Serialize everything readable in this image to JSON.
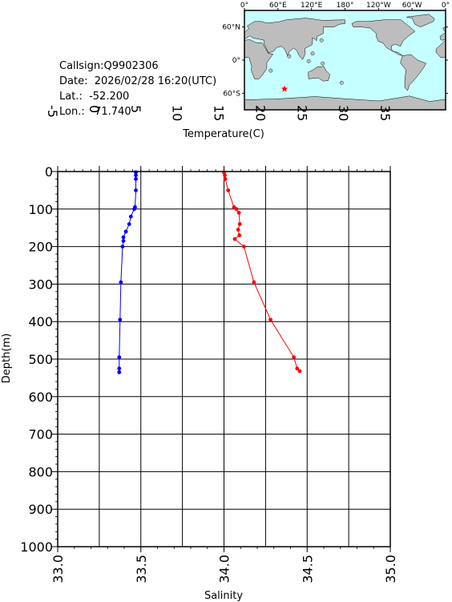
{
  "station": {
    "callsign_line": "Callsign:Q9902306",
    "date_line": "Date:  2026/02/28 16:20(UTC)",
    "lat_line": "Lat.:  -52.200",
    "lon_line": "Lon.:   71.740"
  },
  "map": {
    "top_labels": [
      "0°",
      "60°E",
      "120°E",
      "180°",
      "120°W",
      "60°W",
      "0°"
    ],
    "right_labels": [
      "60°N",
      "0°",
      "60°S"
    ],
    "ocean_color": "#c6ffff",
    "land_color": "#bdbdbd",
    "marker_color": "#ff0000",
    "marker": {
      "lon": 71.74,
      "lat": -52.2
    }
  },
  "chart_data": {
    "type": "line",
    "title": "",
    "top_axis_label": "Temperature(C)",
    "bottom_axis_label": "Salinity",
    "left_axis_label": "Depth(m)",
    "temperature_range": [
      -5,
      35
    ],
    "temperature_ticks": [
      "-5",
      "0",
      "5",
      "10",
      "15",
      "20",
      "25",
      "30",
      "35"
    ],
    "salinity_range": [
      33.0,
      35.0
    ],
    "salinity_ticks": [
      "33.0",
      "33.5",
      "34.0",
      "34.5",
      "35.0"
    ],
    "depth_range": [
      0,
      1000
    ],
    "depth_ticks": [
      "0",
      "100",
      "200",
      "300",
      "400",
      "500",
      "600",
      "700",
      "800",
      "900",
      "1000"
    ],
    "grid": true,
    "series": [
      {
        "variable": "temperature",
        "color": "#ff0000",
        "points": [
          {
            "depth": 2,
            "value": 15.0
          },
          {
            "depth": 10,
            "value": 15.1
          },
          {
            "depth": 20,
            "value": 15.15
          },
          {
            "depth": 50,
            "value": 15.5
          },
          {
            "depth": 95,
            "value": 16.2
          },
          {
            "depth": 100,
            "value": 16.5
          },
          {
            "depth": 110,
            "value": 16.8
          },
          {
            "depth": 140,
            "value": 16.9
          },
          {
            "depth": 155,
            "value": 16.7
          },
          {
            "depth": 170,
            "value": 16.85
          },
          {
            "depth": 180,
            "value": 16.3
          },
          {
            "depth": 200,
            "value": 17.4
          },
          {
            "depth": 295,
            "value": 18.6
          },
          {
            "depth": 395,
            "value": 20.6
          },
          {
            "depth": 495,
            "value": 23.4
          },
          {
            "depth": 525,
            "value": 23.8
          },
          {
            "depth": 532,
            "value": 24.1
          }
        ]
      },
      {
        "variable": "salinity",
        "color": "#0000ff",
        "points": [
          {
            "depth": 2,
            "value": 33.47
          },
          {
            "depth": 10,
            "value": 33.47
          },
          {
            "depth": 20,
            "value": 33.47
          },
          {
            "depth": 50,
            "value": 33.47
          },
          {
            "depth": 95,
            "value": 33.465
          },
          {
            "depth": 100,
            "value": 33.46
          },
          {
            "depth": 120,
            "value": 33.44
          },
          {
            "depth": 140,
            "value": 33.43
          },
          {
            "depth": 160,
            "value": 33.41
          },
          {
            "depth": 175,
            "value": 33.395
          },
          {
            "depth": 185,
            "value": 33.395
          },
          {
            "depth": 200,
            "value": 33.39
          },
          {
            "depth": 295,
            "value": 33.38
          },
          {
            "depth": 395,
            "value": 33.375
          },
          {
            "depth": 495,
            "value": 33.37
          },
          {
            "depth": 525,
            "value": 33.37
          },
          {
            "depth": 535,
            "value": 33.37
          }
        ]
      }
    ]
  }
}
